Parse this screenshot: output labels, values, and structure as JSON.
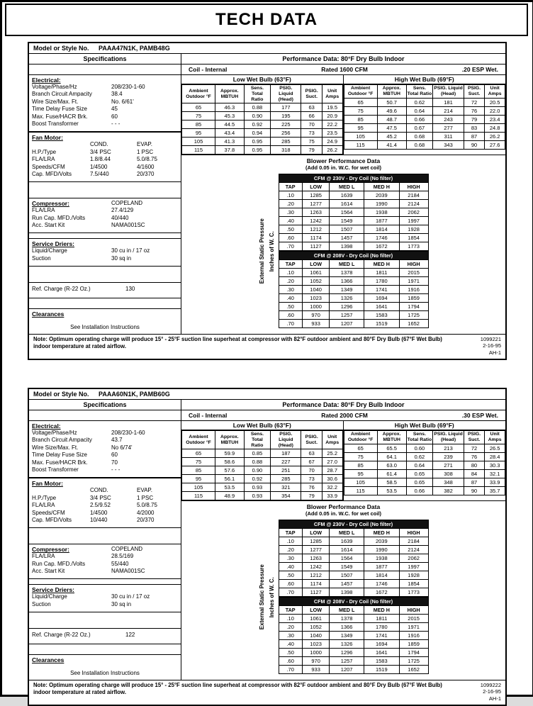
{
  "page_title": "TECH DATA",
  "panels": [
    {
      "model_label": "Model or Style No.",
      "model_value": "PAAA47N1K, PAMB48G",
      "specifications_label": "Specifications",
      "performance_label": "Performance Data: 80°F Dry Bulb Indoor",
      "coil_label": "Coil -  Internal",
      "rated_label": "Rated  1600  CFM",
      "esp_label": ".20  ESP Wet.",
      "electrical": {
        "heading": "Electrical:",
        "rows": [
          [
            "Voltage/Phase/Hz",
            "208/230-1-60"
          ],
          [
            "Branch Circuit Ampacity",
            "38.4"
          ],
          [
            "Wire Size/Max. Ft.",
            "No. 6/61'"
          ],
          [
            "Time Delay Fuse Size",
            "45"
          ],
          [
            "Max. Fuse/HACR Brk.",
            "60"
          ],
          [
            "Boost Transformer",
            "- - -"
          ]
        ]
      },
      "fan_motor": {
        "heading": "Fan Motor:",
        "rows": [
          [
            "",
            "COND.",
            "EVAP."
          ],
          [
            "H.P./Type",
            "3/4 PSC",
            "1 PSC"
          ],
          [
            "FLA/LRA",
            "1.8/8.44",
            "5.0/8.75"
          ],
          [
            "Speeds/CFM",
            "1/4500",
            "4/1600"
          ],
          [
            "Cap. MFD/Volts",
            "7.5/440",
            "20/370"
          ]
        ]
      },
      "compressor": {
        "heading": "Compressor:",
        "brand": "COPELAND",
        "rows": [
          [
            "FLA/LRA",
            "27.4/129"
          ],
          [
            "Run Cap. MFD./Volts",
            "40/440"
          ],
          [
            "Acc. Start Kit",
            "NAMA001SC"
          ]
        ]
      },
      "service_driers": {
        "heading": "Service Driers:",
        "rows": [
          [
            "Liquid/Charge",
            "30 cu in / 17 oz"
          ],
          [
            "Suction",
            "30 sq in"
          ]
        ]
      },
      "ref_charge": {
        "rows": [
          [
            "Ref. Charge (R-22 Oz.)",
            "130"
          ]
        ]
      },
      "clearances": {
        "heading": "Clearances",
        "text": "See Installation Instructions"
      },
      "low_wet_bulb": {
        "title": "Low Wet Bulb (63°F)",
        "headers": [
          "Ambient Outdoor °F",
          "Approx. MBTUH",
          "Sens. Total Ratio",
          "PSIG. Liquid (Head)",
          "PSIG. Suct.",
          "Unit Amps"
        ],
        "rows": [
          [
            "65",
            "46.3",
            "0.88",
            "177",
            "63",
            "19.5"
          ],
          [
            "75",
            "45.3",
            "0.90",
            "195",
            "66",
            "20.9"
          ],
          [
            "85",
            "44.5",
            "0.92",
            "225",
            "70",
            "22.2"
          ],
          [
            "95",
            "43.4",
            "0.94",
            "256",
            "73",
            "23.5"
          ],
          [
            "105",
            "41.3",
            "0.95",
            "285",
            "75",
            "24.9"
          ],
          [
            "115",
            "37.8",
            "0.95",
            "318",
            "79",
            "26.2"
          ]
        ]
      },
      "high_wet_bulb": {
        "title": "High Wet Bulb (69°F)",
        "headers": [
          "Ambient Outdoor °F",
          "Approx. MBTUH",
          "Sens. Total Ratio",
          "PSIG. Liquid (Head)",
          "PSIG. Suct.",
          "Unit Amps"
        ],
        "rows": [
          [
            "65",
            "50.7",
            "0.62",
            "181",
            "72",
            "20.5"
          ],
          [
            "75",
            "49.6",
            "0.64",
            "214",
            "76",
            "22.0"
          ],
          [
            "85",
            "48.7",
            "0.66",
            "243",
            "79",
            "23.4"
          ],
          [
            "95",
            "47.5",
            "0.67",
            "277",
            "83",
            "24.8"
          ],
          [
            "105",
            "45.2",
            "0.68",
            "311",
            "87",
            "26.2"
          ],
          [
            "115",
            "41.4",
            "0.68",
            "343",
            "90",
            "27.6"
          ]
        ]
      },
      "blower": {
        "title": "Blower Performance Data",
        "subtitle": "(Add 0.05 in. W.C. for wet coil)",
        "side_label_outer": "External Static Pressure",
        "side_label_inner": "Inches of W. C.",
        "tables": [
          {
            "title": "CFM @ 230V - Dry Coil (No filter)",
            "headers": [
              "TAP",
              "LOW",
              "MED L",
              "MED H",
              "HIGH"
            ],
            "rows": [
              [
                ".10",
                "1285",
                "1639",
                "2039",
                "2184"
              ],
              [
                ".20",
                "1277",
                "1614",
                "1990",
                "2124"
              ],
              [
                ".30",
                "1263",
                "1564",
                "1938",
                "2062"
              ],
              [
                ".40",
                "1242",
                "1549",
                "1877",
                "1997"
              ],
              [
                ".50",
                "1212",
                "1507",
                "1814",
                "1928"
              ],
              [
                ".60",
                "1174",
                "1457",
                "1746",
                "1854"
              ],
              [
                ".70",
                "1127",
                "1398",
                "1672",
                "1773"
              ]
            ]
          },
          {
            "title": "CFM @ 208V - Dry Coil (No filter)",
            "headers": [
              "TAP",
              "LOW",
              "MED L",
              "MED H",
              "HIGH"
            ],
            "rows": [
              [
                ".10",
                "1061",
                "1378",
                "1811",
                "2015"
              ],
              [
                ".20",
                "1052",
                "1366",
                "1780",
                "1971"
              ],
              [
                ".30",
                "1040",
                "1349",
                "1741",
                "1916"
              ],
              [
                ".40",
                "1023",
                "1326",
                "1694",
                "1859"
              ],
              [
                ".50",
                "1000",
                "1296",
                "1641",
                "1794"
              ],
              [
                ".60",
                "970",
                "1257",
                "1583",
                "1725"
              ],
              [
                ".70",
                "933",
                "1207",
                "1519",
                "1652"
              ]
            ]
          }
        ]
      },
      "note": "Note: Optimum operating charge will produce 15° - 25°F suction line superheat at compressor with 82°F outdoor ambient and 80°F Dry Bulb (67°F Wet Bulb) indoor temperature at rated airflow.",
      "doc_number": "1099221",
      "doc_date": "2-16-95",
      "doc_code": "AH-1"
    },
    {
      "model_label": "Model or Style No.",
      "model_value": "PAAA60N1K, PAMB60G",
      "specifications_label": "Specifications",
      "performance_label": "Performance Data: 80°F Dry Bulb Indoor",
      "coil_label": "Coil -  Internal",
      "rated_label": "Rated  2000  CFM",
      "esp_label": ".30  ESP Wet.",
      "electrical": {
        "heading": "Electrical:",
        "rows": [
          [
            "Voltage/Phase/Hz",
            "208/230-1-60"
          ],
          [
            "Branch Circuit Ampacity",
            "43.7"
          ],
          [
            "Wire Size/Max. Ft.",
            "No 6/74'"
          ],
          [
            "Time Delay Fuse Size",
            "60"
          ],
          [
            "Max. Fuse/HACR Brk.",
            "70"
          ],
          [
            "Boost Transformer",
            "- - -"
          ]
        ]
      },
      "fan_motor": {
        "heading": "Fan Motor:",
        "rows": [
          [
            "",
            "COND.",
            "EVAP."
          ],
          [
            "H.P./Type",
            "3/4 PSC",
            "1 PSC"
          ],
          [
            "FLA/LRA",
            "2.5/9.52",
            "5.0/8.75"
          ],
          [
            "Speeds/CFM",
            "1/4500",
            "4/2000"
          ],
          [
            "Cap. MFD/Volts",
            "10/440",
            "20/370"
          ]
        ]
      },
      "compressor": {
        "heading": "Compressor:",
        "brand": "COPELAND",
        "rows": [
          [
            "FLA/LRA",
            "28.5/169"
          ],
          [
            "Run Cap. MFD./Volts",
            "55/440"
          ],
          [
            "Acc. Start Kit",
            "NAMA001SC"
          ]
        ]
      },
      "service_driers": {
        "heading": "Service Driers:",
        "rows": [
          [
            "Liquid/Charge",
            "30 cu in / 17 oz"
          ],
          [
            "Suction",
            "30 sq in"
          ]
        ]
      },
      "ref_charge": {
        "rows": [
          [
            "Ref. Charge (R-22 Oz.)",
            "122"
          ]
        ]
      },
      "clearances": {
        "heading": "Clearances",
        "text": "See Installation Instructions"
      },
      "low_wet_bulb": {
        "title": "Low Wet Bulb (63°F)",
        "headers": [
          "Ambient Outdoor °F",
          "Approx. MBTUH",
          "Sens. Total Ratio",
          "PSIG. Liquid (Head)",
          "PSIG. Suct.",
          "Unit Amps"
        ],
        "rows": [
          [
            "65",
            "59.9",
            "0.85",
            "187",
            "63",
            "25.2"
          ],
          [
            "75",
            "58.6",
            "0.88",
            "227",
            "67",
            "27.0"
          ],
          [
            "85",
            "57.6",
            "0.90",
            "251",
            "70",
            "28.7"
          ],
          [
            "95",
            "56.1",
            "0.92",
            "285",
            "73",
            "30.6"
          ],
          [
            "105",
            "53.5",
            "0.93",
            "321",
            "76",
            "32.2"
          ],
          [
            "115",
            "48.9",
            "0.93",
            "354",
            "79",
            "33.9"
          ]
        ]
      },
      "high_wet_bulb": {
        "title": "High Wet Bulb (69°F)",
        "headers": [
          "Ambient Outdoor °F",
          "Approx. MBTUH",
          "Sens. Total Ratio",
          "PSIG. Liquid (Head)",
          "PSIG. Suct.",
          "Unit Amps"
        ],
        "rows": [
          [
            "65",
            "65.5",
            "0.60",
            "213",
            "72",
            "26.5"
          ],
          [
            "75",
            "64.1",
            "0.62",
            "239",
            "76",
            "28.4"
          ],
          [
            "85",
            "63.0",
            "0.64",
            "271",
            "80",
            "30.3"
          ],
          [
            "95",
            "61.4",
            "0.65",
            "308",
            "84",
            "32.1"
          ],
          [
            "105",
            "58.5",
            "0.65",
            "348",
            "87",
            "33.9"
          ],
          [
            "115",
            "53.5",
            "0.66",
            "382",
            "90",
            "35.7"
          ]
        ]
      },
      "blower": {
        "title": "Blower Performance Data",
        "subtitle": "(Add 0.05 in. W.C. for wet coil)",
        "side_label_outer": "External Static Pressure",
        "side_label_inner": "Inches of W. C.",
        "tables": [
          {
            "title": "CFM @ 230V - Dry Coil (No filter)",
            "headers": [
              "TAP",
              "LOW",
              "MED L",
              "MED H",
              "HIGH"
            ],
            "rows": [
              [
                ".10",
                "1285",
                "1639",
                "2039",
                "2184"
              ],
              [
                ".20",
                "1277",
                "1614",
                "1990",
                "2124"
              ],
              [
                ".30",
                "1263",
                "1564",
                "1938",
                "2062"
              ],
              [
                ".40",
                "1242",
                "1549",
                "1877",
                "1997"
              ],
              [
                ".50",
                "1212",
                "1507",
                "1814",
                "1928"
              ],
              [
                ".60",
                "1174",
                "1457",
                "1746",
                "1854"
              ],
              [
                ".70",
                "1127",
                "1398",
                "1672",
                "1773"
              ]
            ]
          },
          {
            "title": "CFM @ 208V - Dry Coil (No filter)",
            "headers": [
              "TAP",
              "LOW",
              "MED L",
              "MED H",
              "HIGH"
            ],
            "rows": [
              [
                ".10",
                "1061",
                "1378",
                "1811",
                "2015"
              ],
              [
                ".20",
                "1052",
                "1366",
                "1780",
                "1971"
              ],
              [
                ".30",
                "1040",
                "1349",
                "1741",
                "1916"
              ],
              [
                ".40",
                "1023",
                "1326",
                "1694",
                "1859"
              ],
              [
                ".50",
                "1000",
                "1296",
                "1641",
                "1794"
              ],
              [
                ".60",
                "970",
                "1257",
                "1583",
                "1725"
              ],
              [
                ".70",
                "933",
                "1207",
                "1519",
                "1652"
              ]
            ]
          }
        ]
      },
      "note": "Note: Optimum operating charge will produce 15° - 25°F suction line superheat at compressor with 82°F outdoor ambient and 80°F Dry Bulb (67°F Wet Bulb) indoor temperature at rated airflow.",
      "doc_number": "1099222",
      "doc_date": "2-16-95",
      "doc_code": "AH-1"
    }
  ]
}
